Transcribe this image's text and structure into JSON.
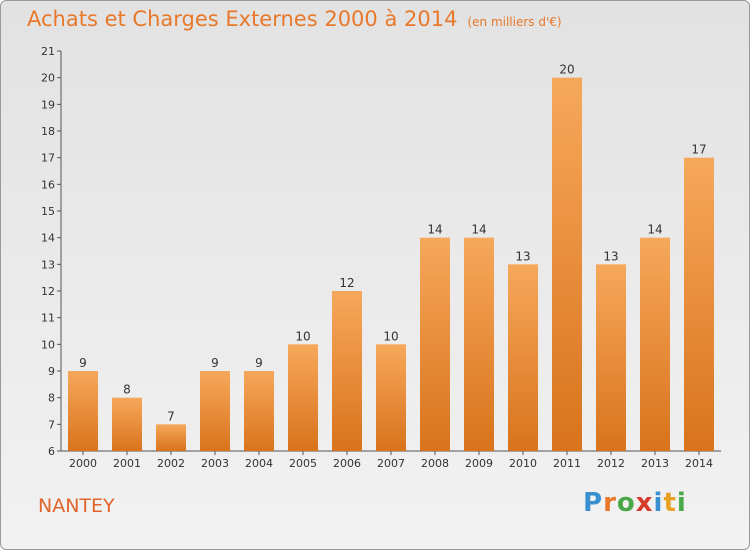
{
  "header": {
    "title": "Achats et Charges Externes 2000 à 2014",
    "subtitle": "(en milliers d'€)"
  },
  "footer": {
    "commune": "NANTEY",
    "brand": "Proxiti",
    "brand_letters": [
      "P",
      "r",
      "o",
      "x",
      "i",
      "t",
      "i"
    ],
    "brand_colors": [
      "#3a8fd0",
      "#e8782a",
      "#4aa84a",
      "#d83a2a",
      "#3a8fd0",
      "#e8a020",
      "#4aa84a"
    ]
  },
  "chart_data": {
    "type": "bar",
    "categories": [
      "2000",
      "2001",
      "2002",
      "2003",
      "2004",
      "2005",
      "2006",
      "2007",
      "2008",
      "2009",
      "2010",
      "2011",
      "2012",
      "2013",
      "2014"
    ],
    "values": [
      9,
      8,
      7,
      9,
      9,
      10,
      12,
      10,
      14,
      14,
      13,
      20,
      13,
      14,
      17
    ],
    "ylim": [
      6,
      21
    ],
    "yticks": [
      6,
      7,
      8,
      9,
      10,
      11,
      12,
      13,
      14,
      15,
      16,
      17,
      18,
      19,
      20,
      21
    ],
    "title": "Achats et Charges Externes 2000 à 2014",
    "xlabel": "",
    "ylabel": "",
    "grid": false,
    "bar_color_top": "#f6a85a",
    "bar_color_bottom": "#d9731c"
  }
}
